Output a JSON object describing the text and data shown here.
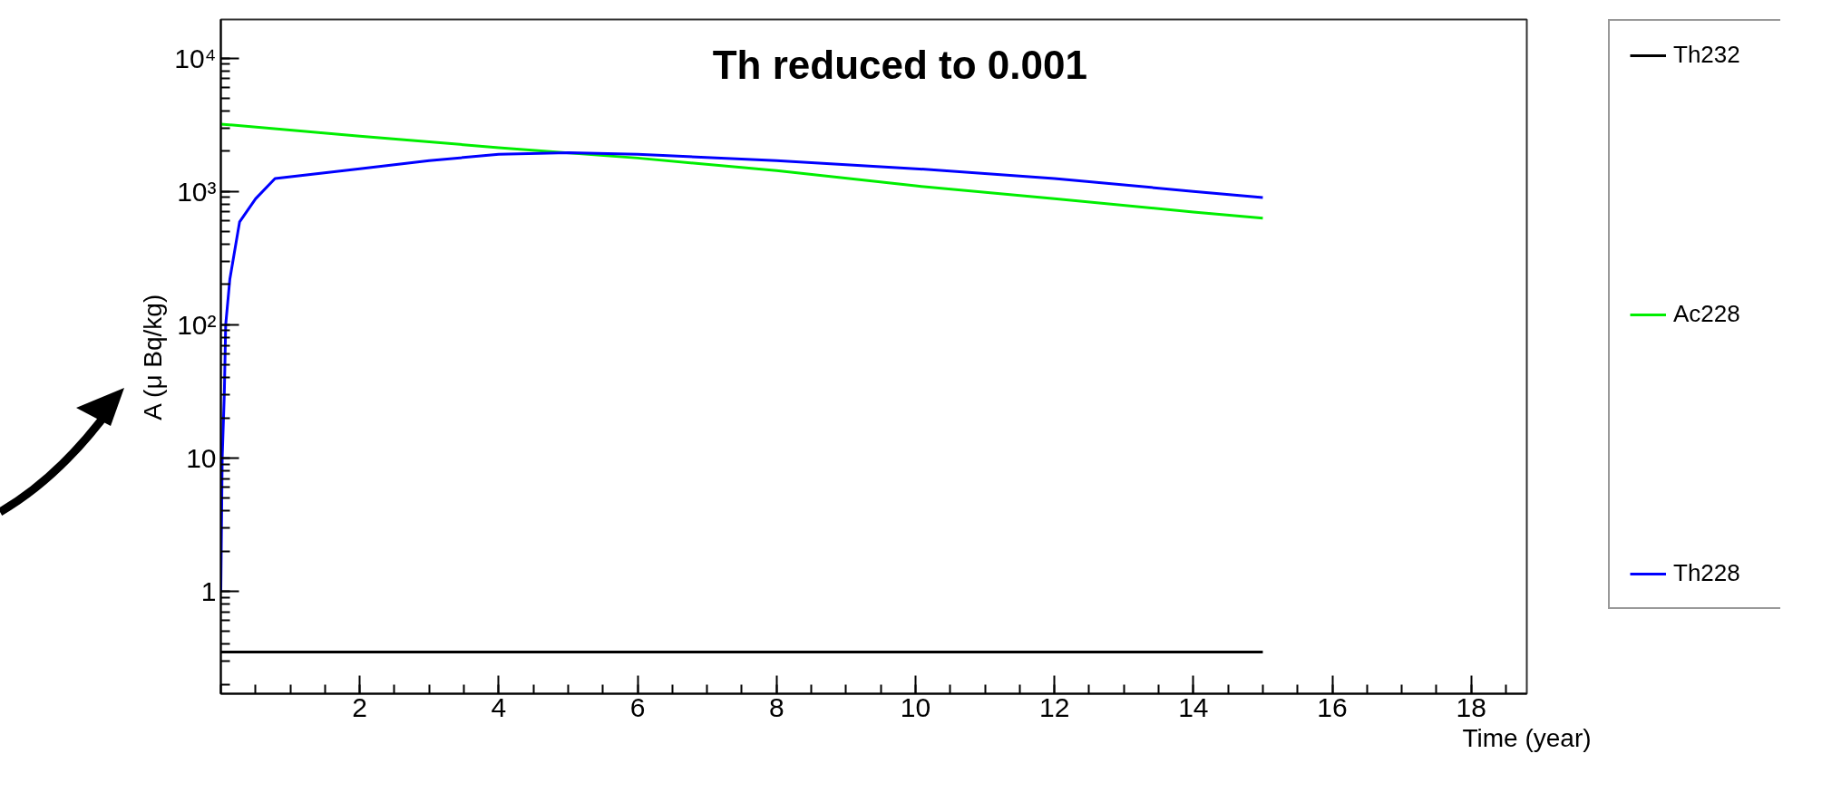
{
  "chart_data": {
    "type": "line",
    "title": "Th reduced to 0.001",
    "xlabel": "Time (year)",
    "ylabel": "A (μ Bq/kg)",
    "log": "y",
    "xlim": [
      0,
      18.8
    ],
    "ylim": [
      0.17,
      19500
    ],
    "xticks": [
      2,
      4,
      6,
      8,
      10,
      12,
      14,
      16,
      18
    ],
    "yticks": [
      {
        "value": 1,
        "label": "1"
      },
      {
        "value": 10,
        "label": "10"
      },
      {
        "value": 100,
        "label": "10²"
      },
      {
        "value": 1000,
        "label": "10³"
      },
      {
        "value": 10000,
        "label": "10⁴"
      }
    ],
    "grid": false,
    "legend": "right",
    "marker": "none",
    "line_style": "solid",
    "series": [
      {
        "name": "Th232",
        "color": "#000000",
        "x": [
          0,
          15
        ],
        "values": [
          0.35,
          0.35
        ]
      },
      {
        "name": "Ac228",
        "color": "#00ee00",
        "x": [
          0,
          2,
          4,
          6,
          8,
          10,
          12,
          14,
          15
        ],
        "values": [
          3200,
          2600,
          2130,
          1780,
          1430,
          1100,
          880,
          700,
          630
        ]
      },
      {
        "name": "Th228",
        "color": "#0000ff",
        "x": [
          0,
          0.02,
          0.05,
          0.07,
          0.13,
          0.27,
          0.5,
          0.78,
          2,
          3,
          4,
          5,
          6,
          8,
          10,
          12,
          14,
          15
        ],
        "values": [
          1,
          10,
          30,
          100,
          220,
          590,
          880,
          1250,
          1480,
          1700,
          1900,
          1950,
          1900,
          1700,
          1480,
          1250,
          1000,
          900
        ]
      }
    ]
  }
}
